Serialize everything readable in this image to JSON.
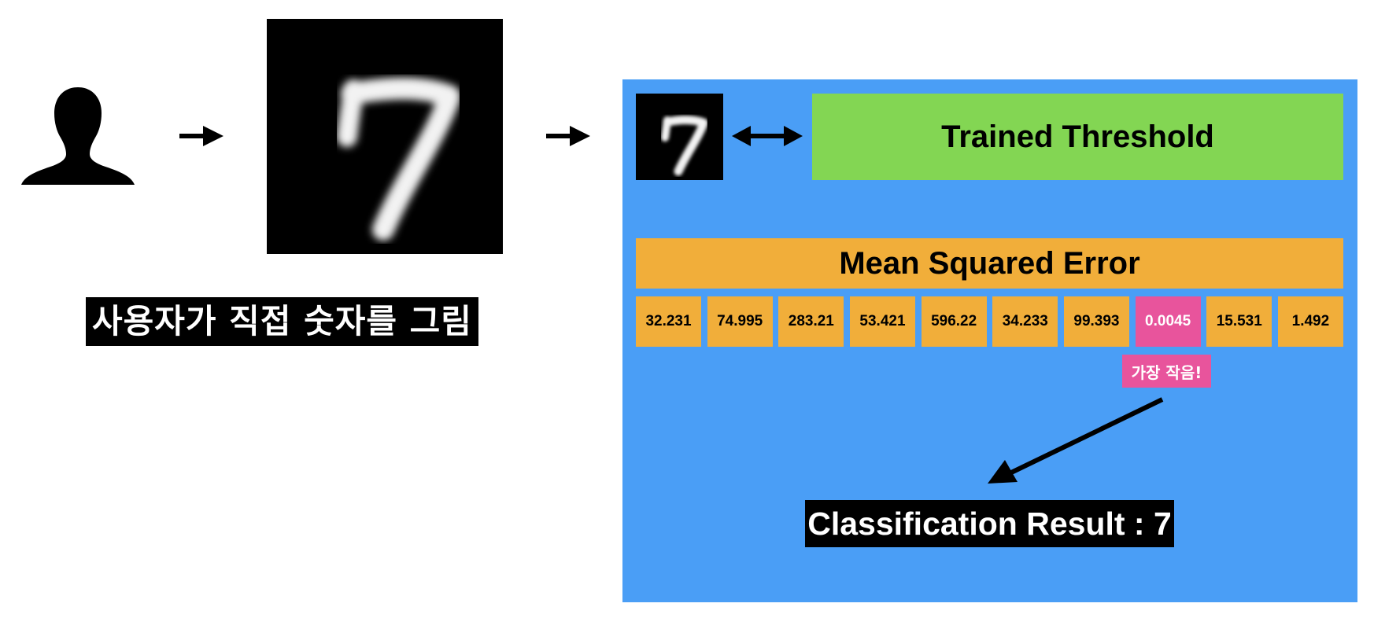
{
  "input": {
    "caption": "사용자가 직접 숫자를 그림",
    "digit_label": "7"
  },
  "classifier": {
    "threshold_label": "Trained Threshold",
    "mse_title": "Mean Squared Error",
    "mse_values": [
      "32.231",
      "74.995",
      "283.21",
      "53.421",
      "596.22",
      "34.233",
      "99.393",
      "0.0045",
      "15.531",
      "1.492"
    ],
    "min_index": 7,
    "smallest_tag": "가장 작음!",
    "result": "Classification Result : 7"
  },
  "colors": {
    "panel": "#4a9ef6",
    "threshold": "#83d653",
    "mse": "#f1ae3a",
    "highlight": "#e8549c"
  },
  "icons": [
    "user-silhouette-icon",
    "right-arrow-icon",
    "double-arrow-icon",
    "diagonal-arrow-icon"
  ]
}
